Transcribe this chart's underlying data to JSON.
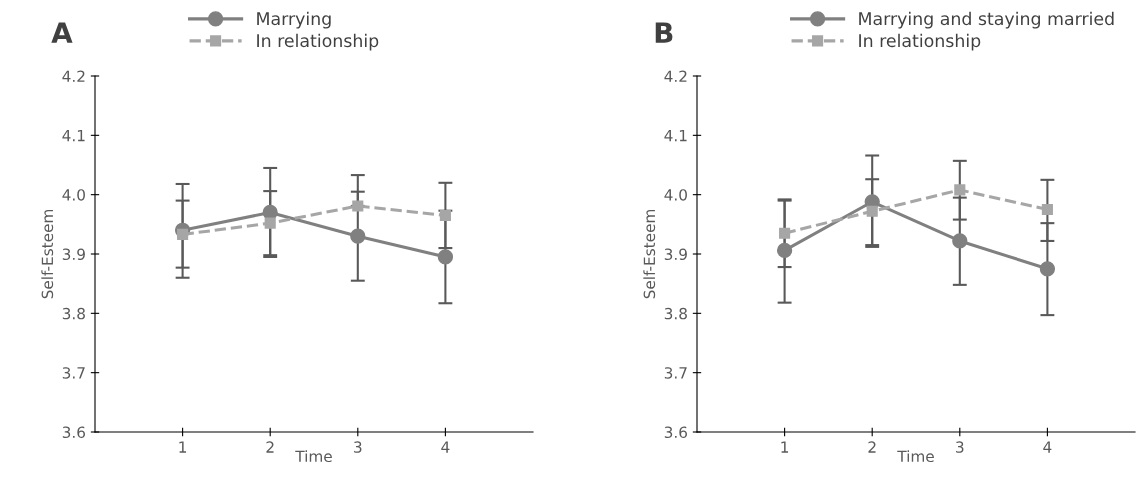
{
  "chart_data": [
    {
      "type": "line",
      "title": "A",
      "xlabel": "Time",
      "ylabel": "Self-Esteem",
      "x": [
        1,
        2,
        3,
        4
      ],
      "xlim": [
        0,
        5
      ],
      "xticks": [
        1,
        2,
        3,
        4
      ],
      "ylim": [
        3.6,
        4.2
      ],
      "yticks": [
        3.6,
        3.7,
        3.8,
        3.9,
        {
          "value": 4.0,
          "label": "4.0"
        },
        4.1,
        4.2
      ],
      "grid": false,
      "legend": "top",
      "series": [
        {
          "name": "Marrying",
          "color": "#808080",
          "marker": "circle",
          "line_style": "solid",
          "values": [
            3.94,
            3.97,
            3.93,
            3.895
          ],
          "errors": [
            [
              3.86,
              4.018
            ],
            [
              3.895,
              4.045
            ],
            [
              3.855,
              4.005
            ],
            [
              3.817,
              3.973
            ]
          ]
        },
        {
          "name": "In relationship",
          "color": "#a6a6a6",
          "marker": "square",
          "line_style": "dashed",
          "values": [
            3.933,
            3.952,
            3.981,
            3.965
          ],
          "errors": [
            [
              3.877,
              3.99
            ],
            [
              3.898,
              4.006
            ],
            [
              3.981,
              4.033
            ],
            [
              3.91,
              4.02
            ]
          ]
        }
      ]
    },
    {
      "type": "line",
      "title": "B",
      "xlabel": "Time",
      "ylabel": "Self-Esteem",
      "x": [
        1,
        2,
        3,
        4
      ],
      "xlim": [
        0,
        5
      ],
      "xticks": [
        1,
        2,
        3,
        4
      ],
      "ylim": [
        3.6,
        4.2
      ],
      "yticks": [
        3.6,
        3.7,
        3.8,
        3.9,
        {
          "value": 4.0,
          "label": "4.0"
        },
        4.1,
        4.2
      ],
      "grid": false,
      "legend": "top",
      "series": [
        {
          "name": "Marrying and staying married",
          "color": "#808080",
          "marker": "circle",
          "line_style": "solid",
          "values": [
            3.906,
            3.988,
            3.922,
            3.875
          ],
          "errors": [
            [
              3.818,
              3.992
            ],
            [
              3.912,
              4.066
            ],
            [
              3.848,
              3.995
            ],
            [
              3.797,
              3.952
            ]
          ]
        },
        {
          "name": "In relationship",
          "color": "#a6a6a6",
          "marker": "square",
          "line_style": "dashed",
          "values": [
            3.935,
            3.972,
            4.008,
            3.975
          ],
          "errors": [
            [
              3.878,
              3.99
            ],
            [
              3.915,
              4.026
            ],
            [
              3.958,
              4.057
            ],
            [
              3.922,
              4.025
            ]
          ]
        }
      ]
    }
  ]
}
